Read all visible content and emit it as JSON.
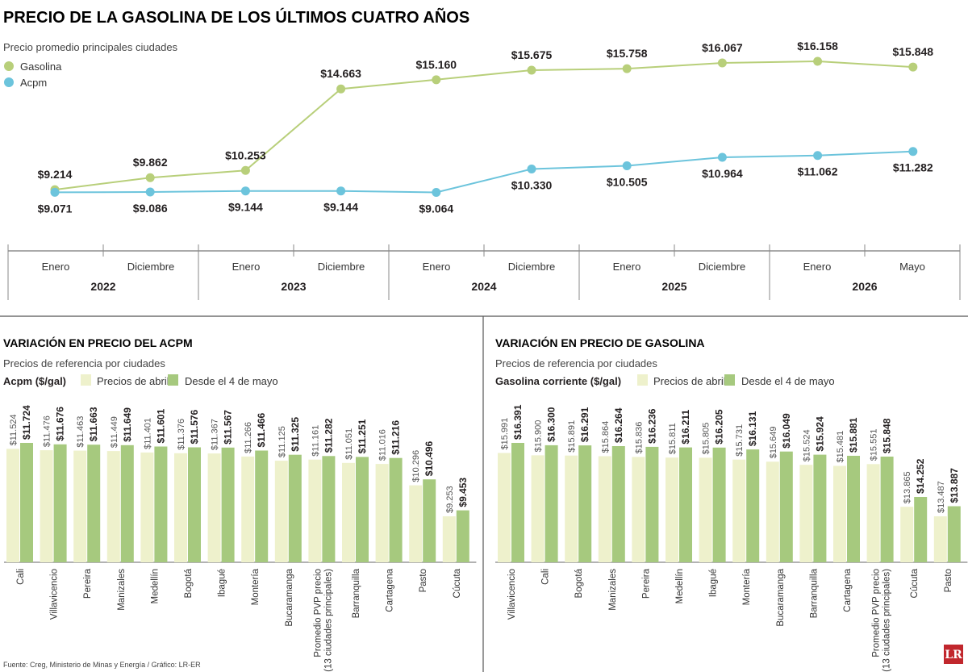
{
  "title": "PRECIO DE LA GASOLINA DE LOS ÚLTIMOS CUATRO AÑOS",
  "subtitle": "Precio promedio principales ciudades",
  "colors": {
    "gasolina": "#b8cf7a",
    "acpm": "#6cc4dc",
    "abril_bar": "#eef1cc",
    "mayo_bar": "#a6c97e",
    "logo_red": "#c1272d"
  },
  "chart_data": [
    {
      "type": "line",
      "title": "PRECIO DE LA GASOLINA DE LOS ÚLTIMOS CUATRO AÑOS",
      "subtitle": "Precio promedio principales ciudades",
      "legend": "top-left",
      "x_labels": [
        "Enero",
        "Diciembre",
        "Enero",
        "Diciembre",
        "Enero",
        "Diciembre",
        "Enero",
        "Diciembre",
        "Enero",
        "Mayo"
      ],
      "years": [
        "2022",
        "2023",
        "2024",
        "2025",
        "2026"
      ],
      "series": [
        {
          "name": "Gasolina",
          "values": [
            9214,
            9862,
            10253,
            14663,
            15160,
            15675,
            15758,
            16067,
            16158,
            15848
          ],
          "labels": [
            "$9.214",
            "$9.862",
            "$10.253",
            "$14.663",
            "$15.160",
            "$15.675",
            "$15.758",
            "$16.067",
            "$16.158",
            "$15.848"
          ]
        },
        {
          "name": "Acpm",
          "values": [
            9071,
            9086,
            9144,
            9144,
            9064,
            10330,
            10505,
            10964,
            11062,
            11282
          ],
          "labels": [
            "$9.071",
            "$9.086",
            "$9.144",
            "$9.144",
            "$9.064",
            "$10.330",
            "$10.505",
            "$10.964",
            "$11.062",
            "$11.282"
          ]
        }
      ]
    },
    {
      "type": "bar",
      "title": "VARIACIÓN EN PRECIO DEL ACPM",
      "subtitle": "Precios de referencia por ciudades",
      "unit_label": "Acpm ($/gal)",
      "legend": "top",
      "series_names": [
        "Precios de abril",
        "Desde el 4 de mayo"
      ],
      "categories": [
        "Cali",
        "Villavicencio",
        "Pereira",
        "Manizales",
        "Medellín",
        "Bogotá",
        "Ibagué",
        "Montería",
        "Bucaramanga",
        "Promedio PVP precio|(13 ciudades principales)",
        "Barranquilla",
        "Cartagena",
        "Pasto",
        "Cúcuta"
      ],
      "abril": [
        11524,
        11476,
        11463,
        11449,
        11401,
        11376,
        11367,
        11266,
        11125,
        11161,
        11051,
        11016,
        10296,
        9253
      ],
      "mayo": [
        11724,
        11676,
        11663,
        11649,
        11601,
        11576,
        11567,
        11466,
        11325,
        11282,
        11251,
        11216,
        10496,
        9453
      ],
      "abril_labels": [
        "$11.524",
        "$11.476",
        "$11.463",
        "$11.449",
        "$11.401",
        "$11.376",
        "$11.367",
        "$11.266",
        "$11.125",
        "$11.161",
        "$11.051",
        "$11.016",
        "$10.296",
        "$9.253"
      ],
      "mayo_labels": [
        "$11.724",
        "$11.676",
        "$11.663",
        "$11.649",
        "$11.601",
        "$11.576",
        "$11.567",
        "$11.466",
        "$11.325",
        "$11.282",
        "$11.251",
        "$11.216",
        "$10.496",
        "$9.453"
      ]
    },
    {
      "type": "bar",
      "title": "VARIACIÓN EN PRECIO DE GASOLINA",
      "subtitle": "Precios de referencia por ciudades",
      "unit_label": "Gasolina corriente ($/gal)",
      "legend": "top",
      "series_names": [
        "Precios de abril",
        "Desde el 4 de mayo"
      ],
      "categories": [
        "Villavicencio",
        "Cali",
        "Bogotá",
        "Manizales",
        "Pereira",
        "Medellín",
        "Ibagué",
        "Montería",
        "Bucaramanga",
        "Barranquilla",
        "Cartagena",
        "Promedio PVP precio|(13 ciudades principales)",
        "Cúcuta",
        "Pasto"
      ],
      "abril": [
        15991,
        15900,
        15891,
        15864,
        15836,
        15811,
        15805,
        15731,
        15649,
        15524,
        15481,
        15551,
        13865,
        13487
      ],
      "mayo": [
        16391,
        16300,
        16291,
        16264,
        16236,
        16211,
        16205,
        16131,
        16049,
        15924,
        15881,
        15848,
        14252,
        13887
      ],
      "abril_labels": [
        "$15.991",
        "$15.900",
        "$15.891",
        "$15.864",
        "$15.836",
        "$15.811",
        "$15.805",
        "$15.731",
        "$15.649",
        "$15.524",
        "$15.481",
        "$15.551",
        "$13.865",
        "$13.487"
      ],
      "mayo_labels": [
        "$16.391",
        "$16.300",
        "$16.291",
        "$16.264",
        "$16.236",
        "$16.211",
        "$16.205",
        "$16.131",
        "$16.049",
        "$15.924",
        "$15.881",
        "$15.848",
        "$14.252",
        "$13.887"
      ]
    }
  ],
  "source": "Fuente: Creg, Ministerio de Minas y Energía / Gráfico: LR-ER",
  "logo_text": "LR"
}
